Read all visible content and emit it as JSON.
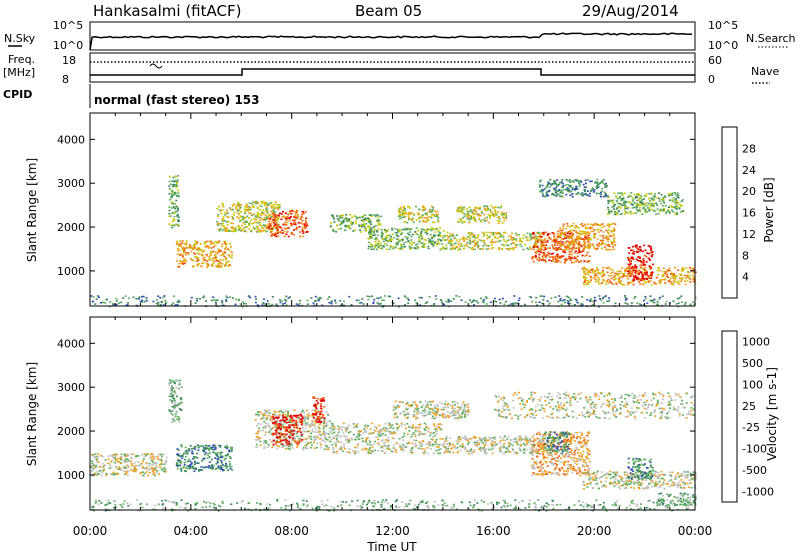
{
  "header": {
    "station": "Hankasalmi (fitACF)",
    "beam": "Beam 05",
    "date": "29/Aug/2014"
  },
  "noise_panel": {
    "left_label": "N.Sky",
    "left_ticks": [
      "10^5",
      "10^0"
    ],
    "right_label": "N.Search",
    "right_ticks": [
      "10^5",
      "10^0"
    ]
  },
  "freq_panel": {
    "left_label_1": "Freq.",
    "left_label_2": "[MHz]",
    "left_ticks": [
      "18",
      "8"
    ],
    "right_label": "Nave",
    "right_ticks": [
      "60",
      "0"
    ]
  },
  "cpid": {
    "label": "CPID",
    "text": "normal (fast stereo) 153"
  },
  "colors": {
    "power_scale": [
      "#0000ff",
      "#3050b0",
      "#3a8a5a",
      "#60b060",
      "#c8c800",
      "#f0a020",
      "#f06010",
      "#e00000"
    ],
    "velocity_scale": [
      "#0000ff",
      "#3050b0",
      "#3a8a5a",
      "#60b060",
      "#c0c0c0",
      "#f0a020",
      "#f06010",
      "#e00000"
    ]
  },
  "chart_data": [
    {
      "type": "heatmap",
      "name": "power",
      "ylabel": "Slant Range [km]",
      "yticks": [
        1000,
        2000,
        3000,
        4000
      ],
      "ylim": [
        200,
        4600
      ],
      "xlim": [
        0,
        24
      ],
      "colorbar_label": "Power [dB]",
      "colorbar_ticks": [
        "4",
        "8",
        "12",
        "16",
        "20",
        "24",
        "28"
      ],
      "features": [
        {
          "t0": 0.0,
          "t1": 24.0,
          "r0": 200,
          "r1": 450,
          "level": 2
        },
        {
          "t0": 3.4,
          "t1": 5.6,
          "r0": 1100,
          "r1": 1700,
          "level": 5
        },
        {
          "t0": 5.0,
          "t1": 7.5,
          "r0": 1900,
          "r1": 2600,
          "level": 4
        },
        {
          "t0": 7.0,
          "t1": 8.6,
          "r0": 1800,
          "r1": 2400,
          "level": 6
        },
        {
          "t0": 9.5,
          "t1": 11.5,
          "r0": 1900,
          "r1": 2300,
          "level": 3
        },
        {
          "t0": 11.0,
          "t1": 14.0,
          "r0": 1500,
          "r1": 2000,
          "level": 3
        },
        {
          "t0": 12.2,
          "t1": 13.8,
          "r0": 2100,
          "r1": 2500,
          "level": 4
        },
        {
          "t0": 14.0,
          "t1": 18.0,
          "r0": 1500,
          "r1": 1900,
          "level": 4
        },
        {
          "t0": 14.5,
          "t1": 16.5,
          "r0": 2100,
          "r1": 2500,
          "level": 4
        },
        {
          "t0": 17.5,
          "t1": 19.8,
          "r0": 1200,
          "r1": 1900,
          "level": 6
        },
        {
          "t0": 18.5,
          "t1": 20.8,
          "r0": 1500,
          "r1": 2100,
          "level": 5
        },
        {
          "t0": 19.5,
          "t1": 24.0,
          "r0": 700,
          "r1": 1100,
          "level": 5
        },
        {
          "t0": 20.5,
          "t1": 23.5,
          "r0": 2300,
          "r1": 2800,
          "level": 3
        },
        {
          "t0": 21.3,
          "t1": 22.3,
          "r0": 800,
          "r1": 1600,
          "level": 7
        },
        {
          "t0": 17.8,
          "t1": 20.5,
          "r0": 2700,
          "r1": 3100,
          "level": 2
        },
        {
          "t0": 3.1,
          "t1": 3.5,
          "r0": 2000,
          "r1": 3200,
          "level": 3
        }
      ]
    },
    {
      "type": "heatmap",
      "name": "velocity",
      "ylabel": "Slant Range [km]",
      "yticks": [
        1000,
        2000,
        3000,
        4000
      ],
      "ylim": [
        200,
        4600
      ],
      "xlim": [
        0,
        24
      ],
      "xlabel": "Time UT",
      "xticks": [
        "00:00",
        "04:00",
        "08:00",
        "12:00",
        "16:00",
        "20:00",
        "00:00"
      ],
      "colorbar_label": "Velocity [m s-1]",
      "colorbar_ticks": [
        "1000",
        "500",
        "100",
        "25",
        "-25",
        "-100",
        "-500",
        "-1000"
      ],
      "features": [
        {
          "t0": 0.0,
          "t1": 24.0,
          "r0": 200,
          "r1": 450,
          "level": 3
        },
        {
          "t0": 0.0,
          "t1": 3.0,
          "r0": 1000,
          "r1": 1500,
          "level": 4
        },
        {
          "t0": 3.4,
          "t1": 5.6,
          "r0": 1100,
          "r1": 1700,
          "level": 2
        },
        {
          "t0": 3.1,
          "t1": 3.6,
          "r0": 2200,
          "r1": 3200,
          "level": 3
        },
        {
          "t0": 6.5,
          "t1": 9.5,
          "r0": 1600,
          "r1": 2500,
          "level": 4
        },
        {
          "t0": 7.2,
          "t1": 8.4,
          "r0": 1700,
          "r1": 2400,
          "level": 7
        },
        {
          "t0": 8.8,
          "t1": 9.3,
          "r0": 2200,
          "r1": 2800,
          "level": 7
        },
        {
          "t0": 9.5,
          "t1": 14.0,
          "r0": 1500,
          "r1": 2200,
          "level": 4
        },
        {
          "t0": 12.0,
          "t1": 15.0,
          "r0": 2300,
          "r1": 2700,
          "level": 4
        },
        {
          "t0": 14.0,
          "t1": 18.0,
          "r0": 1500,
          "r1": 1900,
          "level": 4
        },
        {
          "t0": 16.0,
          "t1": 24.0,
          "r0": 2300,
          "r1": 2900,
          "level": 4
        },
        {
          "t0": 17.5,
          "t1": 19.8,
          "r0": 1000,
          "r1": 2000,
          "level": 5
        },
        {
          "t0": 18.0,
          "t1": 19.0,
          "r0": 1500,
          "r1": 2000,
          "level": 2
        },
        {
          "t0": 19.5,
          "t1": 24.0,
          "r0": 700,
          "r1": 1100,
          "level": 4
        },
        {
          "t0": 21.3,
          "t1": 22.3,
          "r0": 900,
          "r1": 1400,
          "level": 2
        },
        {
          "t0": 22.5,
          "t1": 24.0,
          "r0": 300,
          "r1": 600,
          "level": 3
        }
      ]
    }
  ]
}
